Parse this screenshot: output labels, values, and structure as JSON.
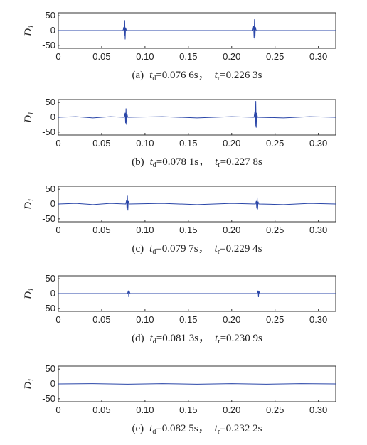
{
  "chart_data": [
    {
      "type": "line",
      "ylabel": [
        "D",
        "1"
      ],
      "caption": [
        "(a)",
        "t",
        "d",
        "=0.076 6s，",
        "t",
        "r",
        "=0.226 3s"
      ],
      "x": [
        0,
        0.0746,
        0.0756,
        0.0761,
        0.0766,
        0.0771,
        0.0776,
        0.0786,
        0.2243,
        0.2253,
        0.2258,
        0.2263,
        0.2268,
        0.2273,
        0.2283,
        0.32
      ],
      "values": [
        0,
        0,
        12,
        -18,
        35,
        -30,
        10,
        0,
        0,
        15,
        -25,
        38,
        -30,
        12,
        0,
        0
      ],
      "color": "#2a46a8",
      "xlim": [
        0,
        0.32
      ],
      "xticks": [
        0,
        0.05,
        {
          "value": 0.1,
          "label": "0.10"
        },
        0.15,
        {
          "value": 0.2,
          "label": "0.20"
        },
        0.25,
        {
          "value": 0.3,
          "label": "0.30"
        }
      ],
      "ylim": [
        -60,
        60
      ],
      "yticks": [
        50,
        0,
        -50
      ]
    },
    {
      "type": "line",
      "ylabel": [
        "D",
        "1"
      ],
      "caption": [
        "(b)",
        "t",
        "d",
        "=0.078 1s，",
        "t",
        "r",
        "=0.227 8s"
      ],
      "x": [
        0,
        0.02,
        0.04,
        0.06,
        0.0761,
        0.0771,
        0.0776,
        0.0781,
        0.0786,
        0.0791,
        0.0801,
        0.12,
        0.16,
        0.2,
        0.2258,
        0.2268,
        0.2273,
        0.2278,
        0.2283,
        0.2288,
        0.2298,
        0.26,
        0.29,
        0.32
      ],
      "values": [
        0,
        2,
        -2,
        2,
        0,
        15,
        -20,
        30,
        -25,
        12,
        0,
        2,
        -2,
        2,
        0,
        20,
        -30,
        55,
        -35,
        15,
        0,
        -2,
        2,
        0
      ],
      "color": "#2a46a8",
      "xlim": [
        0,
        0.32
      ],
      "xticks": [
        0,
        0.05,
        {
          "value": 0.1,
          "label": "0.10"
        },
        0.15,
        {
          "value": 0.2,
          "label": "0.20"
        },
        0.25,
        {
          "value": 0.3,
          "label": "0.30"
        }
      ],
      "ylim": [
        -60,
        60
      ],
      "yticks": [
        50,
        0,
        -50
      ]
    },
    {
      "type": "line",
      "ylabel": [
        "D",
        "1"
      ],
      "caption": [
        "(c)",
        "t",
        "d",
        "=0.079 7s，",
        "t",
        "r",
        "=0.229 4s"
      ],
      "x": [
        0,
        0.02,
        0.04,
        0.06,
        0.0777,
        0.0787,
        0.0792,
        0.0797,
        0.0802,
        0.0807,
        0.0817,
        0.12,
        0.16,
        0.2,
        0.2274,
        0.2284,
        0.2289,
        0.2294,
        0.2299,
        0.2304,
        0.2314,
        0.26,
        0.29,
        0.32
      ],
      "values": [
        0,
        2,
        -2,
        2,
        0,
        12,
        -18,
        28,
        -22,
        10,
        0,
        2,
        -2,
        2,
        0,
        10,
        -15,
        22,
        -18,
        8,
        0,
        -2,
        2,
        0
      ],
      "color": "#2a46a8",
      "xlim": [
        0,
        0.32
      ],
      "xticks": [
        0,
        0.05,
        {
          "value": 0.1,
          "label": "0.10"
        },
        0.15,
        {
          "value": 0.2,
          "label": "0.20"
        },
        0.25,
        {
          "value": 0.3,
          "label": "0.30"
        }
      ],
      "ylim": [
        -60,
        60
      ],
      "yticks": [
        50,
        0,
        -50
      ]
    },
    {
      "type": "line",
      "ylabel": [
        "D",
        "1"
      ],
      "caption": [
        "(d)",
        "t",
        "d",
        "=0.081 3s，",
        "t",
        "r",
        "=0.230 9s"
      ],
      "x": [
        0,
        0.0798,
        0.0808,
        0.0813,
        0.0818,
        0.0828,
        0.2294,
        0.2304,
        0.2309,
        0.2314,
        0.2324,
        0.32
      ],
      "values": [
        0,
        0,
        10,
        -12,
        8,
        0,
        0,
        10,
        -12,
        8,
        0,
        0
      ],
      "color": "#2a46a8",
      "xlim": [
        0,
        0.32
      ],
      "xticks": [
        0,
        0.05,
        {
          "value": 0.1,
          "label": "0.10"
        },
        0.15,
        {
          "value": 0.2,
          "label": "0.20"
        },
        0.25,
        {
          "value": 0.3,
          "label": "0.30"
        }
      ],
      "ylim": [
        -60,
        60
      ],
      "yticks": [
        50,
        0,
        -50
      ]
    },
    {
      "type": "line",
      "ylabel": [
        "D",
        "1"
      ],
      "caption": [
        "(e)",
        "t",
        "d",
        "=0.082 5s，",
        "t",
        "r",
        "=0.232 2s"
      ],
      "x": [
        0,
        0.04,
        0.08,
        0.12,
        0.16,
        0.2,
        0.24,
        0.28,
        0.32
      ],
      "values": [
        0,
        1,
        -1,
        1,
        -1,
        1,
        -1,
        1,
        0
      ],
      "color": "#2a46a8",
      "xlim": [
        0,
        0.32
      ],
      "xticks": [
        0,
        0.05,
        {
          "value": 0.1,
          "label": "0.10"
        },
        0.15,
        {
          "value": 0.2,
          "label": "0.20"
        },
        0.25,
        {
          "value": 0.3,
          "label": "0.30"
        }
      ],
      "ylim": [
        -60,
        60
      ],
      "yticks": [
        50,
        0,
        -50
      ]
    }
  ]
}
